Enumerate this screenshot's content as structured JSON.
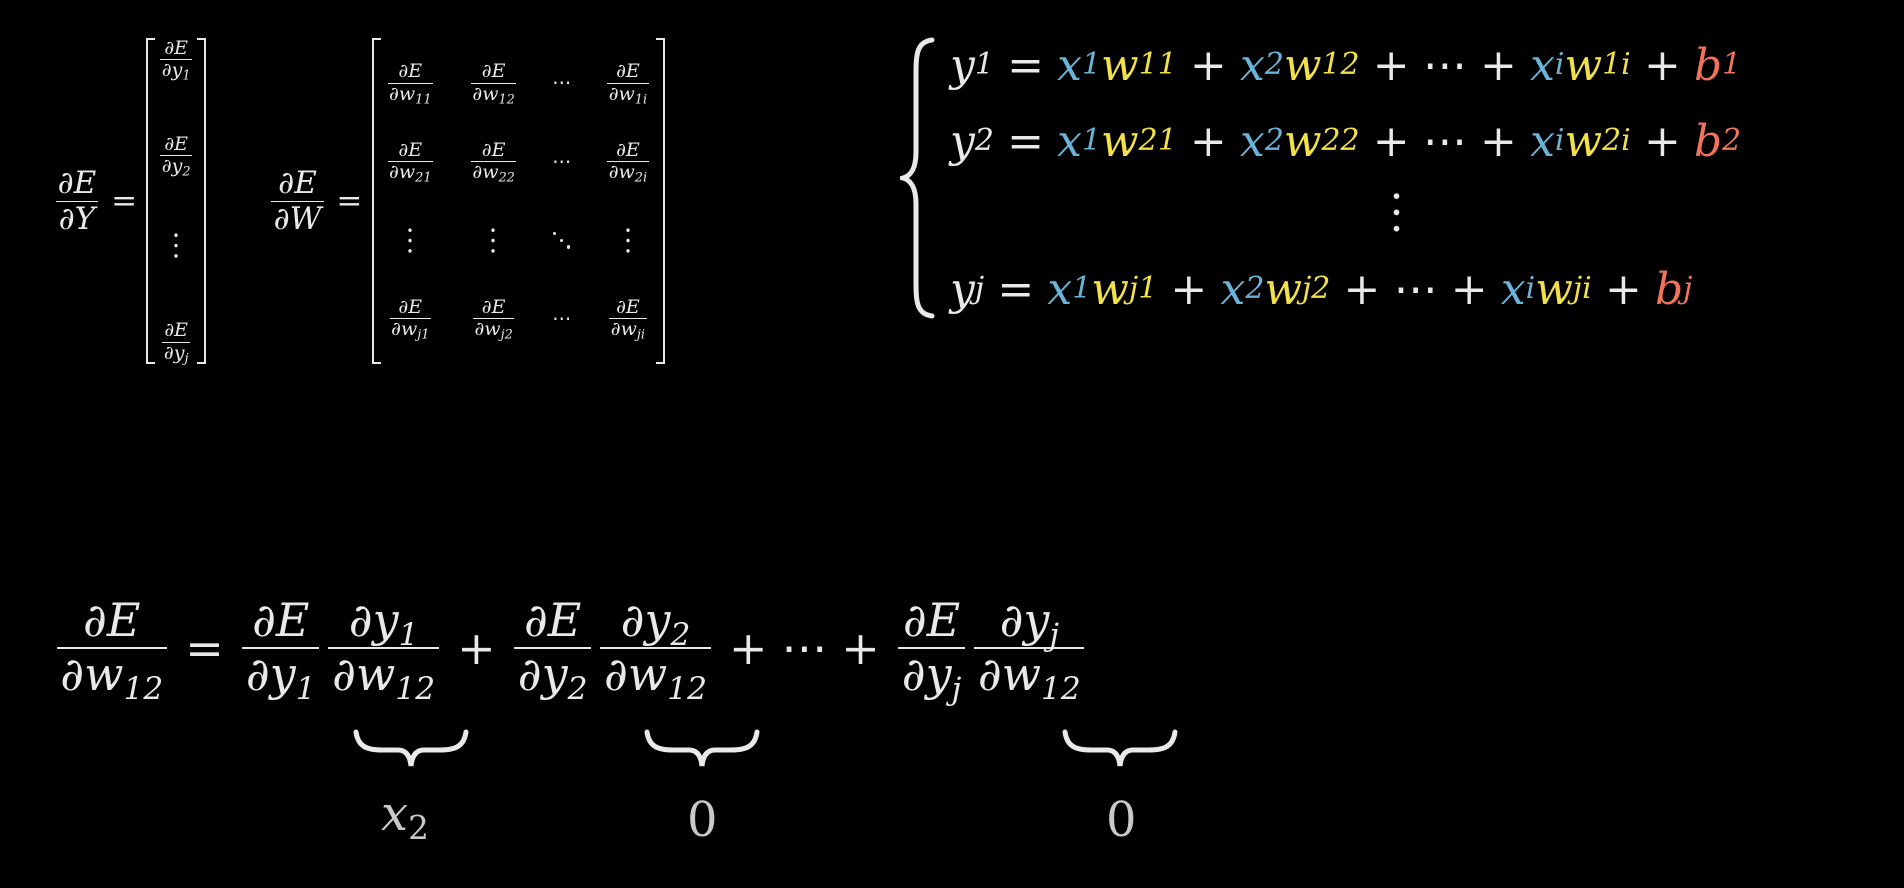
{
  "colors": {
    "x": "#6ab3d8",
    "w": "#f2e04b",
    "b": "#f1735a",
    "text": "#e9e9e9"
  },
  "symbols": {
    "partial": "∂",
    "E": "E",
    "Y": "Y",
    "W": "W",
    "y": "y",
    "x": "x",
    "w": "w",
    "b": "b",
    "equals": "=",
    "plus": "+",
    "cdots": "⋯"
  },
  "indices": {
    "one": "1",
    "two": "2",
    "i": "i",
    "j": "j",
    "w11": "11",
    "w12": "12",
    "w1i": "1i",
    "w21": "21",
    "w22": "22",
    "w2i": "2i",
    "wj1": "j1",
    "wj2": "j2",
    "wji": "ji"
  },
  "labels": {
    "x2_var": "x",
    "x2_sub": "2",
    "zero": "0"
  }
}
